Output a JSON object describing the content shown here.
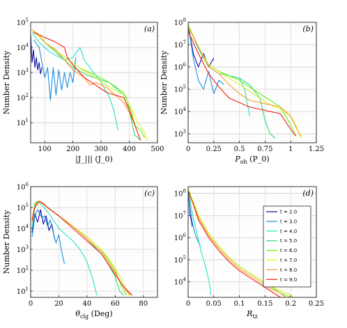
{
  "chart_data": [
    {
      "type": "line",
      "panel_label": "(a)",
      "xlabel": "|J_||| (J_0)",
      "ylabel": "Number Density",
      "xlim": [
        50,
        500
      ],
      "ylim_log10": [
        0.2,
        5
      ],
      "log_y": true,
      "xticks": [
        "100",
        "200",
        "300",
        "400",
        "500"
      ],
      "xtick_values": [
        100,
        200,
        300,
        400,
        500
      ],
      "yticks": [
        "10^1",
        "10^2",
        "10^3",
        "10^4",
        "10^5"
      ],
      "ytick_values": [
        1,
        2,
        3,
        4,
        5
      ],
      "grid": true,
      "series": [
        {
          "color": "#0a0aa0",
          "x": [
            50,
            55,
            60,
            65,
            70,
            75,
            80,
            85,
            90
          ],
          "y": [
            4.5,
            3.4,
            3.9,
            3.2,
            3.6,
            3.1,
            3.4,
            2.95,
            3.2
          ]
        },
        {
          "color": "#1a8fe0",
          "x": [
            60,
            80,
            90,
            100,
            110,
            120,
            130,
            140,
            150,
            160,
            170,
            180,
            190,
            200,
            210
          ],
          "y": [
            4.3,
            4.0,
            3.4,
            2.8,
            3.2,
            1.9,
            3.2,
            2.1,
            3.1,
            2.3,
            3.0,
            2.4,
            3.0,
            2.6,
            3.6
          ]
        },
        {
          "color": "#28e0c8",
          "x": [
            55,
            80,
            120,
            170,
            200,
            225,
            240,
            260,
            300,
            330,
            345,
            360
          ],
          "y": [
            4.6,
            4.2,
            3.8,
            3.5,
            3.6,
            4.0,
            3.5,
            3.2,
            2.6,
            2.0,
            1.5,
            0.7
          ]
        },
        {
          "color": "#30d870",
          "x": [
            55,
            100,
            160,
            200,
            250,
            300,
            330,
            350,
            370,
            390,
            405,
            420,
            440
          ],
          "y": [
            4.7,
            4.2,
            3.6,
            3.2,
            2.9,
            2.7,
            2.6,
            2.4,
            2.2,
            2.0,
            1.2,
            0.5,
            0.3
          ]
        },
        {
          "color": "#60f010",
          "x": [
            55,
            100,
            160,
            220,
            280,
            330,
            380,
            405,
            420,
            440,
            455
          ],
          "y": [
            4.7,
            4.2,
            3.7,
            3.2,
            2.9,
            2.6,
            2.2,
            1.5,
            0.9,
            0.7,
            0.4
          ]
        },
        {
          "color": "#d8f020",
          "x": [
            55,
            100,
            160,
            220,
            280,
            330,
            380,
            410,
            430,
            450,
            465
          ],
          "y": [
            4.7,
            4.2,
            3.7,
            3.2,
            2.8,
            2.4,
            2.1,
            1.5,
            1.0,
            0.7,
            0.3
          ]
        },
        {
          "color": "#ff9a20",
          "x": [
            55,
            80,
            100,
            140,
            170,
            200,
            240,
            260,
            280,
            320,
            350,
            380,
            400,
            420
          ],
          "y": [
            4.7,
            4.5,
            4.2,
            3.9,
            3.5,
            3.1,
            2.8,
            2.5,
            2.6,
            2.4,
            2.1,
            1.8,
            1.4,
            0.9
          ]
        },
        {
          "color": "#ee1a10",
          "x": [
            60,
            100,
            140,
            170,
            180,
            200,
            240,
            280,
            320,
            350,
            380,
            400,
            420,
            440
          ],
          "y": [
            4.6,
            4.4,
            4.2,
            4.0,
            3.6,
            3.3,
            2.8,
            2.5,
            2.2,
            2.1,
            2.0,
            1.5,
            0.9,
            0.3
          ]
        }
      ]
    },
    {
      "type": "line",
      "panel_label": "(b)",
      "xlabel": "P_oh (P_0)",
      "ylabel": "Number Density",
      "xlim": [
        0,
        1.25
      ],
      "ylim_log10": [
        2.6,
        8
      ],
      "log_y": true,
      "xticks": [
        "0",
        "0.25",
        "0.5",
        "0.75",
        "1",
        "1.25"
      ],
      "xtick_values": [
        0,
        0.25,
        0.5,
        0.75,
        1,
        1.25
      ],
      "yticks": [
        "10^3",
        "10^4",
        "10^5",
        "10^6",
        "10^7",
        "10^8"
      ],
      "ytick_values": [
        3,
        4,
        5,
        6,
        7,
        8
      ],
      "grid": true,
      "series": [
        {
          "color": "#0a0aa0",
          "x": [
            0.0,
            0.05,
            0.1,
            0.15,
            0.2,
            0.25
          ],
          "y": [
            7.9,
            6.6,
            6.0,
            6.6,
            6.0,
            6.4
          ]
        },
        {
          "color": "#1a8fe0",
          "x": [
            0.0,
            0.05,
            0.1,
            0.15,
            0.2,
            0.25,
            0.3,
            0.35
          ],
          "y": [
            7.9,
            6.4,
            5.4,
            5.0,
            5.8,
            4.8,
            5.4,
            5.2
          ]
        },
        {
          "color": "#28e0c8",
          "x": [
            0.0,
            0.1,
            0.2,
            0.3,
            0.4,
            0.5,
            0.55,
            0.6
          ],
          "y": [
            7.9,
            6.8,
            6.0,
            5.7,
            5.6,
            5.5,
            5.0,
            3.8
          ]
        },
        {
          "color": "#30d870",
          "x": [
            0.0,
            0.1,
            0.2,
            0.3,
            0.4,
            0.5,
            0.6,
            0.7,
            0.75,
            0.8,
            0.85
          ],
          "y": [
            7.9,
            6.9,
            6.1,
            5.8,
            5.6,
            5.5,
            5.2,
            4.6,
            3.6,
            3.0,
            2.8
          ]
        },
        {
          "color": "#60f010",
          "x": [
            0.0,
            0.1,
            0.2,
            0.3,
            0.4,
            0.5,
            0.6,
            0.7,
            0.8,
            0.9,
            0.95,
            1.0,
            1.05
          ],
          "y": [
            7.9,
            6.9,
            6.1,
            5.8,
            5.6,
            5.4,
            5.1,
            4.8,
            4.5,
            4.2,
            3.8,
            3.4,
            2.9
          ]
        },
        {
          "color": "#d8f020",
          "x": [
            0.0,
            0.1,
            0.2,
            0.3,
            0.4,
            0.5,
            0.6,
            0.7,
            0.8,
            0.9,
            1.0,
            1.05,
            1.1
          ],
          "y": [
            7.9,
            6.9,
            6.1,
            5.8,
            5.5,
            5.2,
            4.9,
            4.6,
            4.3,
            4.1,
            3.8,
            3.4,
            2.8
          ]
        },
        {
          "color": "#ff9a20",
          "x": [
            0.0,
            0.1,
            0.2,
            0.3,
            0.4,
            0.5,
            0.6,
            0.7,
            0.8,
            0.9,
            1.0,
            1.05,
            1.1
          ],
          "y": [
            7.8,
            6.9,
            6.0,
            5.7,
            5.2,
            4.8,
            4.5,
            4.4,
            4.3,
            4.2,
            3.8,
            3.3,
            2.9
          ]
        },
        {
          "color": "#ee1a10",
          "x": [
            0.0,
            0.1,
            0.2,
            0.3,
            0.4,
            0.5,
            0.6,
            0.7,
            0.8,
            0.9,
            1.0,
            1.05
          ],
          "y": [
            7.6,
            6.6,
            5.7,
            5.1,
            4.6,
            4.4,
            4.2,
            4.1,
            4.0,
            3.9,
            3.2,
            2.9
          ]
        }
      ]
    },
    {
      "type": "line",
      "panel_label": "(c)",
      "xlabel": "θ_clg (Deg)",
      "ylabel": "Number Density",
      "xlim": [
        0,
        90
      ],
      "ylim_log10": [
        0.7,
        6
      ],
      "log_y": true,
      "xticks": [
        "0",
        "20",
        "40",
        "60",
        "80"
      ],
      "xtick_values": [
        0,
        20,
        40,
        60,
        80
      ],
      "yticks": [
        "10^1",
        "10^2",
        "10^3",
        "10^4",
        "10^5",
        "10^6"
      ],
      "ytick_values": [
        1,
        2,
        3,
        4,
        5,
        6
      ],
      "grid": true,
      "series": [
        {
          "color": "#0a0aa0",
          "x": [
            1,
            3,
            5,
            7,
            9,
            11,
            13,
            15,
            17
          ],
          "y": [
            3.8,
            4.7,
            4.3,
            4.9,
            4.2,
            4.6,
            3.9,
            4.2,
            3.5
          ]
        },
        {
          "color": "#1a8fe0",
          "x": [
            1,
            3,
            5,
            8,
            10,
            12,
            14,
            16,
            18,
            20,
            22,
            24
          ],
          "y": [
            3.6,
            4.6,
            4.9,
            4.5,
            4.6,
            4.1,
            4.4,
            3.8,
            3.3,
            3.7,
            2.9,
            2.3
          ]
        },
        {
          "color": "#28e0c8",
          "x": [
            1,
            3,
            5,
            8,
            12,
            16,
            20,
            25,
            30,
            35,
            40,
            44,
            47
          ],
          "y": [
            4.0,
            5.1,
            5.3,
            5.1,
            4.8,
            4.4,
            4.0,
            3.7,
            3.4,
            3.0,
            2.4,
            1.6,
            0.8
          ]
        },
        {
          "color": "#30d870",
          "x": [
            1,
            3,
            5,
            8,
            12,
            20,
            30,
            40,
            50,
            55,
            60,
            63,
            66
          ],
          "y": [
            4.4,
            5.2,
            5.3,
            5.2,
            5.0,
            4.6,
            4.1,
            3.5,
            2.8,
            2.3,
            1.7,
            1.0,
            0.8
          ]
        },
        {
          "color": "#60f010",
          "x": [
            1,
            3,
            5,
            8,
            12,
            20,
            30,
            40,
            50,
            55,
            60,
            64,
            68
          ],
          "y": [
            4.4,
            5.1,
            5.3,
            5.2,
            5.0,
            4.6,
            4.1,
            3.6,
            3.0,
            2.5,
            2.0,
            1.3,
            0.8
          ]
        },
        {
          "color": "#d8f020",
          "x": [
            1,
            3,
            5,
            8,
            12,
            20,
            30,
            40,
            50,
            55,
            60,
            64,
            68,
            70
          ],
          "y": [
            4.4,
            5.0,
            5.3,
            5.2,
            5.0,
            4.6,
            4.1,
            3.6,
            3.0,
            2.6,
            2.1,
            1.6,
            1.0,
            0.8
          ]
        },
        {
          "color": "#ff9a20",
          "x": [
            1,
            3,
            5,
            8,
            12,
            20,
            30,
            40,
            50,
            55,
            60,
            64,
            68,
            71
          ],
          "y": [
            4.3,
            5.0,
            5.3,
            5.2,
            5.0,
            4.6,
            4.1,
            3.5,
            2.9,
            2.4,
            1.9,
            1.4,
            1.0,
            0.8
          ]
        },
        {
          "color": "#ee1a10",
          "x": [
            1,
            3,
            6,
            9,
            12,
            20,
            30,
            40,
            50,
            55,
            60,
            65,
            69,
            72
          ],
          "y": [
            4.4,
            5.0,
            5.3,
            5.2,
            5.0,
            4.6,
            4.0,
            3.4,
            2.8,
            2.3,
            1.8,
            1.3,
            1.0,
            0.8
          ]
        }
      ]
    },
    {
      "type": "line",
      "panel_label": "(d)",
      "xlabel": "R_tz",
      "ylabel": "",
      "xlim": [
        0,
        0.25
      ],
      "ylim_log10": [
        3.3,
        8.3
      ],
      "log_y": true,
      "xticks": [
        "0",
        "0.05",
        "0.1",
        "0.15",
        "0.2",
        "0.25"
      ],
      "xtick_values": [
        0,
        0.05,
        0.1,
        0.15,
        0.2,
        0.25
      ],
      "yticks": [
        "10^4",
        "10^5",
        "10^6",
        "10^7",
        "10^8"
      ],
      "ytick_values": [
        4,
        5,
        6,
        7,
        8
      ],
      "grid": true,
      "legend_position": "right",
      "series": [
        {
          "name": "t = 2.0",
          "color": "#0a0aa0",
          "x": [
            0.0,
            0.002,
            0.004,
            0.006,
            0.008
          ],
          "y": [
            8.2,
            7.6,
            7.0,
            6.8,
            6.5
          ]
        },
        {
          "name": "t = 3.0",
          "color": "#1a8fe0",
          "x": [
            0.0,
            0.004,
            0.008,
            0.012,
            0.016,
            0.02,
            0.024
          ],
          "y": [
            8.2,
            7.3,
            6.7,
            6.3,
            6.0,
            5.8,
            5.6
          ]
        },
        {
          "name": "t = 4.0",
          "color": "#28e0c8",
          "x": [
            0.0,
            0.005,
            0.01,
            0.015,
            0.02,
            0.025,
            0.03,
            0.035,
            0.04,
            0.045
          ],
          "y": [
            8.2,
            7.5,
            6.9,
            6.4,
            5.9,
            5.4,
            5.0,
            4.6,
            4.1,
            3.4
          ]
        },
        {
          "name": "t = 5.0",
          "color": "#30d870",
          "x": [
            0.0,
            0.01,
            0.02,
            0.04,
            0.06,
            0.08,
            0.1,
            0.12,
            0.14,
            0.16,
            0.18,
            0.19
          ],
          "y": [
            8.2,
            7.6,
            7.0,
            6.2,
            5.6,
            5.1,
            4.7,
            4.4,
            4.1,
            3.8,
            3.5,
            3.3
          ]
        },
        {
          "name": "t = 6.0",
          "color": "#60f010",
          "x": [
            0.0,
            0.01,
            0.02,
            0.04,
            0.06,
            0.08,
            0.1,
            0.12,
            0.14,
            0.16,
            0.18,
            0.2
          ],
          "y": [
            8.2,
            7.6,
            7.0,
            6.2,
            5.6,
            5.1,
            4.7,
            4.4,
            4.1,
            3.8,
            3.5,
            3.3
          ]
        },
        {
          "name": "t = 7.0",
          "color": "#d8f020",
          "x": [
            0.0,
            0.01,
            0.02,
            0.04,
            0.06,
            0.08,
            0.1,
            0.12,
            0.14,
            0.16,
            0.18,
            0.2,
            0.205
          ],
          "y": [
            8.2,
            7.6,
            7.0,
            6.2,
            5.6,
            5.1,
            4.7,
            4.4,
            4.1,
            3.8,
            3.6,
            3.4,
            3.3
          ]
        },
        {
          "name": "t = 8.0",
          "color": "#ff9a20",
          "x": [
            0.0,
            0.01,
            0.02,
            0.04,
            0.06,
            0.08,
            0.1,
            0.12,
            0.14,
            0.16,
            0.18,
            0.19
          ],
          "y": [
            8.1,
            7.5,
            6.9,
            6.1,
            5.5,
            5.0,
            4.6,
            4.3,
            4.0,
            3.7,
            3.5,
            3.3
          ]
        },
        {
          "name": "t = 9.0",
          "color": "#ee1a10",
          "x": [
            0.0,
            0.01,
            0.02,
            0.04,
            0.06,
            0.08,
            0.1,
            0.12,
            0.14,
            0.16,
            0.18
          ],
          "y": [
            8.1,
            7.5,
            6.8,
            6.0,
            5.4,
            4.9,
            4.5,
            4.2,
            3.9,
            3.6,
            3.3
          ]
        }
      ]
    }
  ]
}
